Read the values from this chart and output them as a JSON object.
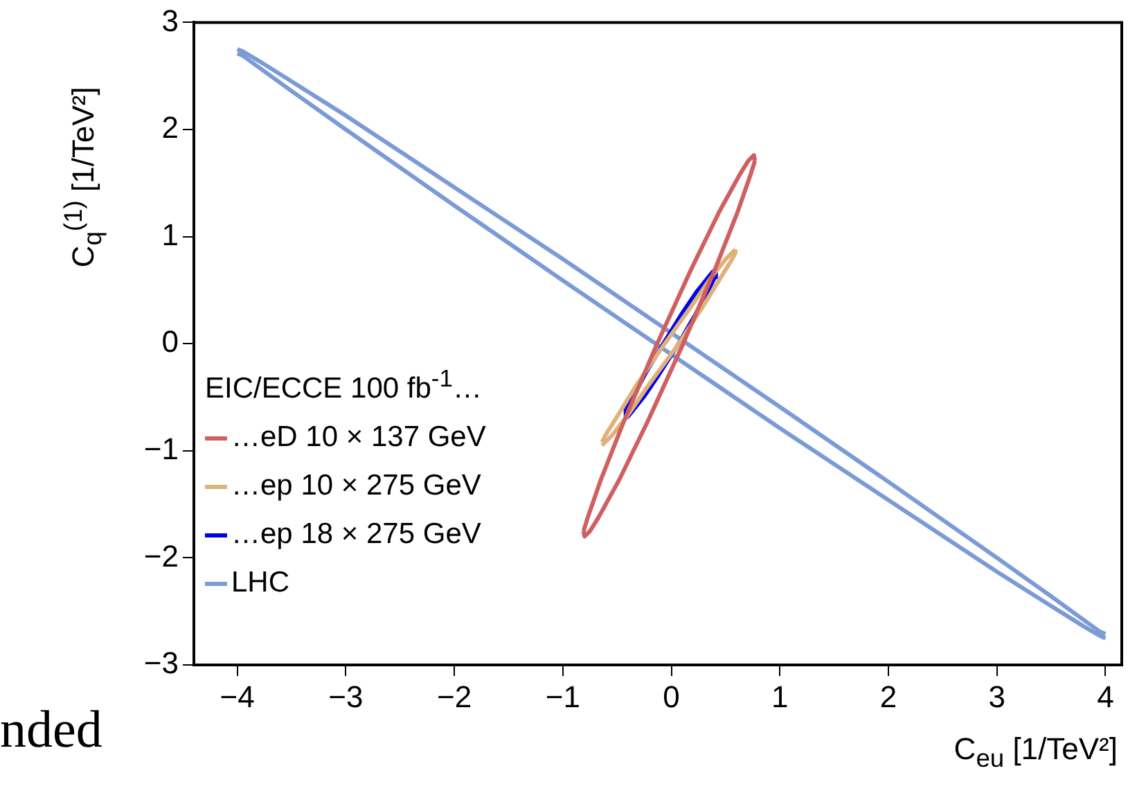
{
  "chart_data": {
    "type": "line",
    "xlabel": "C$_{eu}$ [1/TeV²]",
    "ylabel": "C$_{q}$$^{(1)}$ [1/TeV²]",
    "legend_title": "EIC/ECCE 100 fb$^{-1}$…",
    "legend": "left",
    "marker": "none",
    "line_style": "solid",
    "grid": false,
    "xlim": [
      -4.4,
      4.15
    ],
    "xticks": [
      -4,
      -3,
      -2,
      -1,
      0,
      1,
      2,
      3,
      4
    ],
    "ylim": [
      -3,
      3
    ],
    "yticks": [
      -3,
      -2,
      -1,
      0,
      1,
      2,
      3
    ],
    "annotations": [
      "nded"
    ],
    "series": [
      {
        "name": "…eD 10 × 137 GeV",
        "color": "#d05f5f",
        "x": [
          -0.81,
          -0.8,
          -0.75,
          -0.67,
          -0.48,
          -0.22,
          0.1,
          0.4,
          0.61,
          0.73,
          0.77
        ],
        "values": [
          -1.75,
          -1.8,
          -1.75,
          -1.62,
          -1.27,
          -0.73,
          -0.02,
          0.69,
          1.23,
          1.58,
          1.71
        ]
      },
      {
        "color": "#d05f5f",
        "x": [
          -0.81,
          -0.77,
          -0.65,
          -0.44,
          -0.14,
          0.18,
          0.44,
          0.63,
          0.71,
          0.76,
          0.77
        ],
        "values": [
          -1.75,
          -1.62,
          -1.27,
          -0.73,
          -0.02,
          0.69,
          1.23,
          1.58,
          1.71,
          1.76,
          1.71
        ]
      },
      {
        "name": "…ep 10 × 275 GeV",
        "color": "#dfb27a",
        "x": [
          -0.64,
          -0.61,
          -0.55,
          -0.41,
          -0.22,
          0.04,
          0.28,
          0.45,
          0.56,
          0.59,
          0.59
        ],
        "values": [
          -0.95,
          -0.92,
          -0.86,
          -0.68,
          -0.4,
          -0.04,
          0.33,
          0.61,
          0.79,
          0.85,
          0.88
        ]
      },
      {
        "color": "#dfb27a",
        "x": [
          -0.64,
          -0.61,
          -0.5,
          -0.33,
          -0.09,
          0.17,
          0.36,
          0.5,
          0.56,
          0.59
        ],
        "values": [
          -0.92,
          -0.86,
          -0.68,
          -0.4,
          -0.04,
          0.33,
          0.61,
          0.79,
          0.85,
          0.88
        ]
      },
      {
        "name": "…ep 18 × 275 GeV",
        "color": "#0000f0",
        "x": [
          -0.43,
          -0.4,
          -0.36,
          -0.25,
          -0.11,
          0.06,
          0.22,
          0.33,
          0.4,
          0.41
        ],
        "values": [
          -0.7,
          -0.68,
          -0.63,
          -0.49,
          -0.28,
          -0.01,
          0.27,
          0.48,
          0.62,
          0.69
        ]
      },
      {
        "color": "#0000f0",
        "x": [
          -0.43,
          -0.42,
          -0.35,
          -0.24,
          -0.08,
          0.09,
          0.23,
          0.34,
          0.38,
          0.41
        ],
        "values": [
          -0.68,
          -0.62,
          -0.49,
          -0.28,
          -0.01,
          0.27,
          0.48,
          0.62,
          0.67,
          0.69
        ]
      },
      {
        "name": "LHC",
        "color": "#7b9bd6",
        "x": [
          -4,
          -3.95,
          -3.8,
          -3.5,
          -3,
          -2,
          -1,
          0,
          1,
          2,
          3,
          3.5,
          3.8,
          3.95,
          4
        ],
        "values": [
          2.75,
          2.73,
          2.64,
          2.45,
          2.13,
          1.46,
          0.79,
          0.1,
          -0.59,
          -1.29,
          -2,
          -2.36,
          -2.58,
          -2.69,
          -2.71
        ]
      },
      {
        "color": "#7b9bd6",
        "x": [
          -4,
          -3.95,
          -3.8,
          -3.5,
          -3,
          -2,
          -1,
          0,
          1,
          2,
          3,
          3.5,
          3.8,
          3.95,
          4
        ],
        "values": [
          2.71,
          2.69,
          2.58,
          2.36,
          2,
          1.29,
          0.59,
          -0.1,
          -0.79,
          -1.46,
          -2.13,
          -2.45,
          -2.64,
          -2.73,
          -2.75
        ]
      }
    ]
  }
}
